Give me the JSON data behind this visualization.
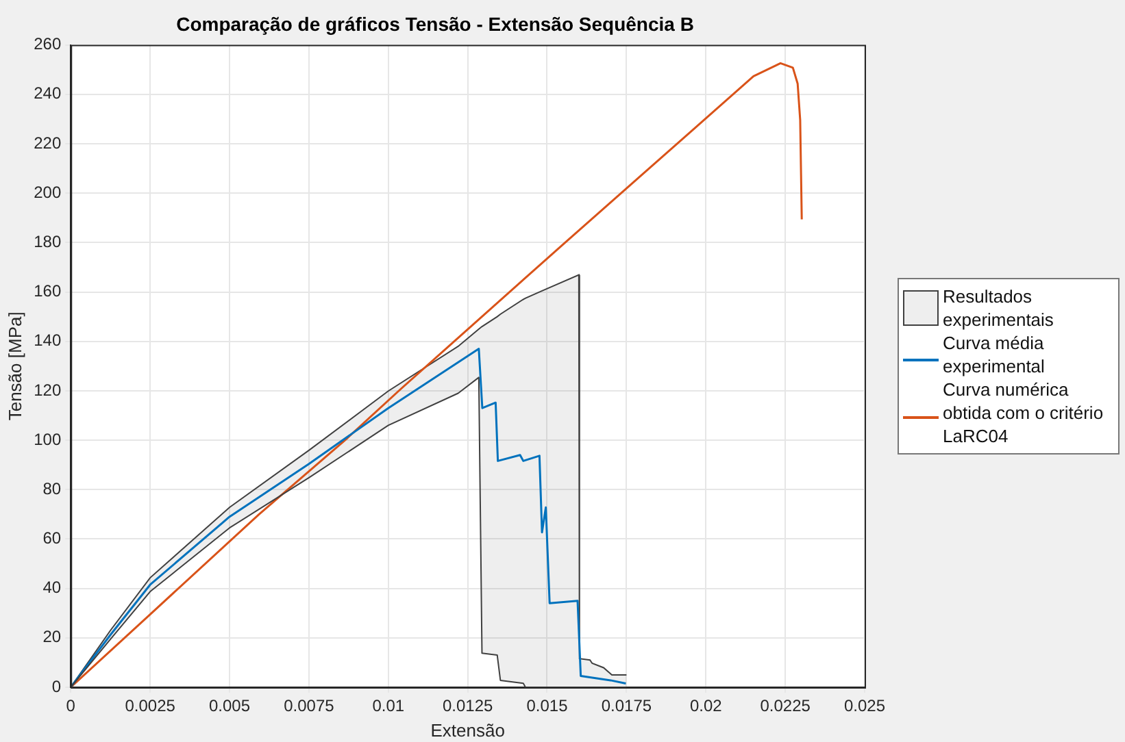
{
  "chart_data": {
    "type": "line",
    "title": "Comparação de gráficos Tensão - Extensão Sequência B",
    "xlabel": "Extensão",
    "ylabel": "Tensão [MPa]",
    "xlim": [
      0,
      0.025
    ],
    "xticks": [
      0,
      0.0025,
      0.005,
      0.0075,
      0.01,
      0.0125,
      0.015,
      0.0175,
      0.02,
      0.0225,
      0.025
    ],
    "ylim": [
      0,
      260
    ],
    "yticks": [
      0,
      20,
      40,
      60,
      80,
      100,
      120,
      140,
      160,
      180,
      200,
      220,
      240,
      260
    ],
    "grid": true,
    "legend": "right",
    "series": [
      {
        "name": "Resultados experimentais",
        "type": "area",
        "color": "#404040",
        "x": [
          0,
          0.00125,
          0.0025,
          0.005,
          0.0075,
          0.01,
          0.0122,
          0.01285,
          0.01295,
          0.01343,
          0.01353,
          0.01425,
          0.01432,
          0.01483,
          0.016,
          0.01602,
          0.01635,
          0.01642,
          0.01678,
          0.01704,
          0.0175
        ],
        "values": [
          0,
          23,
          44.3,
          72.8,
          95.9,
          119.9,
          138,
          145,
          146,
          150,
          151,
          157,
          157.5,
          160.4,
          166.9,
          11.6,
          11,
          9.7,
          7.9,
          5,
          5
        ]
      },
      {
        "type": "line",
        "color": "#404040",
        "x": [
          0,
          0.00125,
          0.0025,
          0.005,
          0.0075,
          0.01,
          0.0122,
          0.01285,
          0.01295,
          0.01343,
          0.01353,
          0.01425,
          0.01432,
          0.01483,
          0.016,
          0.01602,
          0.01635,
          0.01642,
          0.01678,
          0.01704,
          0.0175
        ],
        "values": [
          0,
          19.4,
          38.7,
          64.5,
          84.8,
          106,
          119,
          125.4,
          13.8,
          13,
          2.8,
          1.6,
          0,
          0,
          0,
          0,
          0,
          0,
          0,
          0,
          0
        ]
      },
      {
        "name": "Curva média experimental",
        "type": "line",
        "color": "#0072bd",
        "x": [
          0,
          0.00125,
          0.0025,
          0.005,
          0.0075,
          0.01,
          0.01285,
          0.01296,
          0.01338,
          0.01345,
          0.01415,
          0.01425,
          0.01476,
          0.01484,
          0.01496,
          0.01508,
          0.01596,
          0.01606,
          0.017,
          0.01748
        ],
        "values": [
          0,
          21.2,
          41.5,
          69,
          90.4,
          113,
          137,
          113,
          115.2,
          91.6,
          94,
          91.6,
          93.7,
          62.7,
          72.8,
          34,
          35,
          4.6,
          2.8,
          1.5
        ]
      },
      {
        "name": "Curva numérica obtida com o critério LaRC04",
        "type": "line",
        "color": "#d95319",
        "x": [
          0,
          0.0025,
          0.00593,
          0.00868,
          0.0104,
          0.01555,
          0.0215,
          0.02235,
          0.02274,
          0.02289,
          0.02297,
          0.02302
        ],
        "values": [
          0,
          29.5,
          70,
          100.5,
          120.8,
          179.8,
          247.3,
          252.6,
          250.8,
          244.3,
          229.6,
          189.4
        ]
      }
    ]
  }
}
